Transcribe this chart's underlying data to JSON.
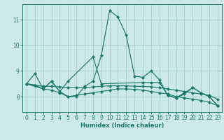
{
  "xlabel": "Humidex (Indice chaleur)",
  "bg_color": "#cce8e8",
  "grid_color": "#aacfcf",
  "line_color": "#1a7a6a",
  "xlim": [
    -0.5,
    23.5
  ],
  "ylim": [
    7.4,
    11.6
  ],
  "yticks": [
    8,
    9,
    10,
    11
  ],
  "xticks": [
    0,
    1,
    2,
    3,
    4,
    5,
    6,
    7,
    8,
    9,
    10,
    11,
    12,
    13,
    14,
    15,
    16,
    17,
    18,
    19,
    20,
    21,
    22,
    23
  ],
  "series": [
    {
      "x": [
        0,
        2,
        3,
        4,
        5,
        6,
        7,
        8,
        9,
        10,
        11,
        12,
        13,
        14,
        15,
        16,
        17,
        18,
        19,
        20,
        21,
        22,
        23
      ],
      "y": [
        8.5,
        8.3,
        8.6,
        8.2,
        8.0,
        8.0,
        8.4,
        8.6,
        9.6,
        11.35,
        11.1,
        10.4,
        8.8,
        8.75,
        9.0,
        8.65,
        8.05,
        7.95,
        8.15,
        8.35,
        8.15,
        8.0,
        7.65
      ]
    },
    {
      "comment": "line with bump at x=1 ~8.9, x=3 ~8.6, x=8 ~9.55",
      "x": [
        0,
        1,
        2,
        3,
        4,
        5,
        8,
        9,
        14,
        15,
        16,
        17,
        18,
        19,
        20,
        21,
        22,
        23
      ],
      "y": [
        8.5,
        8.9,
        8.3,
        8.6,
        8.2,
        8.6,
        9.55,
        8.5,
        8.55,
        8.55,
        8.55,
        8.05,
        7.95,
        8.1,
        8.35,
        8.15,
        8.0,
        7.65
      ]
    },
    {
      "x": [
        0,
        1,
        2,
        3,
        4,
        5,
        6,
        7,
        8,
        9,
        10,
        11,
        12,
        13,
        14,
        15,
        16,
        17,
        18,
        19,
        20,
        21,
        22,
        23
      ],
      "y": [
        8.5,
        8.45,
        8.4,
        8.4,
        8.38,
        8.35,
        8.35,
        8.35,
        8.38,
        8.4,
        8.42,
        8.42,
        8.42,
        8.4,
        8.4,
        8.38,
        8.35,
        8.3,
        8.25,
        8.2,
        8.15,
        8.1,
        8.05,
        7.9
      ]
    },
    {
      "x": [
        0,
        1,
        2,
        3,
        4,
        5,
        6,
        7,
        8,
        9,
        10,
        11,
        12,
        13,
        14,
        15,
        16,
        17,
        18,
        19,
        20,
        21,
        22,
        23
      ],
      "y": [
        8.5,
        8.45,
        8.3,
        8.25,
        8.15,
        8.0,
        8.05,
        8.1,
        8.15,
        8.2,
        8.25,
        8.3,
        8.3,
        8.28,
        8.25,
        8.2,
        8.15,
        8.1,
        8.0,
        7.95,
        7.9,
        7.85,
        7.78,
        7.65
      ]
    }
  ]
}
